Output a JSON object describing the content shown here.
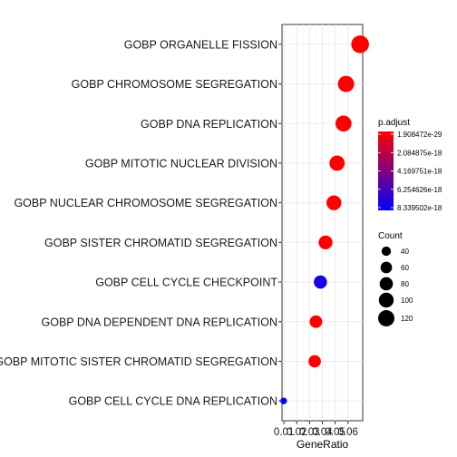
{
  "chart_data": {
    "type": "scatter",
    "xlabel": "GeneRatio",
    "xlim": [
      0.0085,
      0.0715
    ],
    "x_ticks": [
      "0.01",
      "0.02",
      "0.03",
      "0.04",
      "0.05",
      "0.06"
    ],
    "x_tick_values": [
      0.01,
      0.02,
      0.03,
      0.04,
      0.05,
      0.06
    ],
    "terms": [
      {
        "label": "GOBP ORGANELLE FISSION",
        "gene_ratio": 0.0695,
        "count": 142,
        "p_adjust": 1.908472e-29
      },
      {
        "label": "GOBP CHROMOSOME SEGREGATION",
        "gene_ratio": 0.0585,
        "count": 120,
        "p_adjust": 3e-27
      },
      {
        "label": "GOBP DNA REPLICATION",
        "gene_ratio": 0.0565,
        "count": 116,
        "p_adjust": 5e-25
      },
      {
        "label": "GOBP MITOTIC NUCLEAR DIVISION",
        "gene_ratio": 0.0515,
        "count": 106,
        "p_adjust": 3e-24
      },
      {
        "label": "GOBP NUCLEAR CHROMOSOME SEGREGATION",
        "gene_ratio": 0.049,
        "count": 100,
        "p_adjust": 2e-23
      },
      {
        "label": "GOBP SISTER CHROMATID SEGREGATION",
        "gene_ratio": 0.0425,
        "count": 87,
        "p_adjust": 1e-22
      },
      {
        "label": "GOBP CELL CYCLE CHECKPOINT",
        "gene_ratio": 0.0385,
        "count": 79,
        "p_adjust": 7.5e-18
      },
      {
        "label": "GOBP DNA DEPENDENT DNA REPLICATION",
        "gene_ratio": 0.035,
        "count": 72,
        "p_adjust": 1e-21
      },
      {
        "label": "GOBP MITOTIC SISTER CHROMATID SEGREGATION",
        "gene_ratio": 0.034,
        "count": 70,
        "p_adjust": 1.5e-20
      },
      {
        "label": "GOBP CELL CYCLE DNA REPLICATION",
        "gene_ratio": 0.0098,
        "count": 20,
        "p_adjust": 8.339502e-18
      }
    ],
    "color_legend": {
      "title": "p.adjust",
      "labels": [
        "1.908472e-29",
        "2.084875e-18",
        "4.169751e-18",
        "6.254626e-18",
        "8.339502e-18"
      ],
      "values": [
        1.908472e-29,
        2.084875e-18,
        4.169751e-18,
        6.254626e-18,
        8.339502e-18
      ],
      "low_color": "#ff0000",
      "high_color": "#0000ff"
    },
    "size_legend": {
      "title": "Count",
      "labels": [
        "40",
        "60",
        "80",
        "100",
        "120"
      ],
      "values": [
        40,
        60,
        80,
        100,
        120
      ]
    },
    "grid": true,
    "legend_position": "right"
  }
}
